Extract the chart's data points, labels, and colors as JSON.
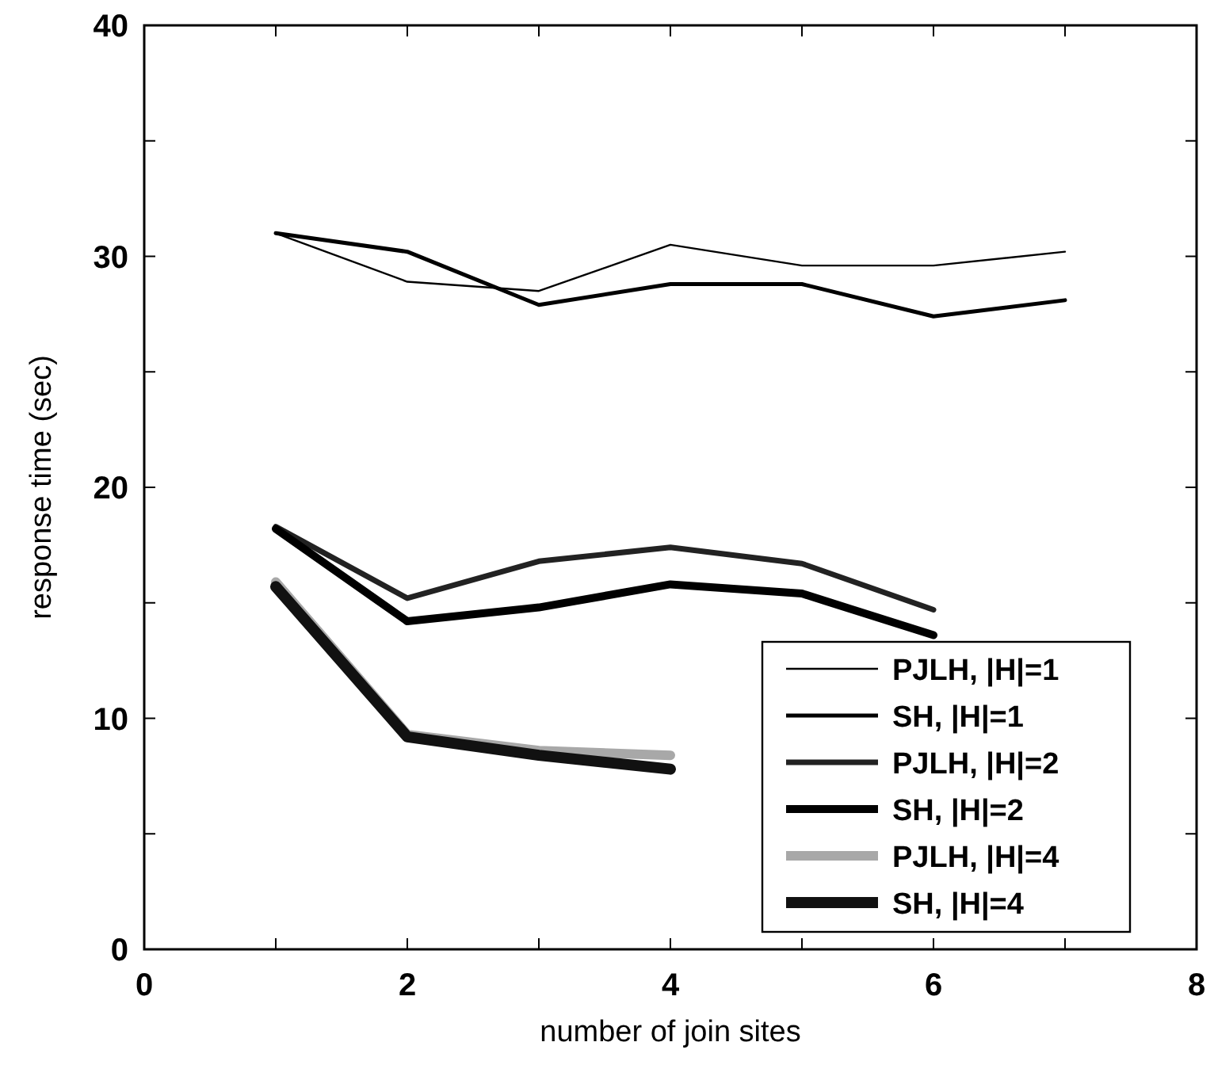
{
  "chart_data": {
    "type": "line",
    "xlabel": "number of join sites",
    "ylabel": "response time (sec)",
    "xlim": [
      0,
      8
    ],
    "ylim": [
      0,
      40
    ],
    "xticks": [
      0,
      {
        "value": 1,
        "label": null
      },
      2,
      {
        "value": 3,
        "label": null
      },
      4,
      {
        "value": 5,
        "label": null
      },
      6,
      {
        "value": 7,
        "label": null
      },
      8
    ],
    "yticks": [
      0,
      {
        "value": 5,
        "label": null
      },
      10,
      {
        "value": 15,
        "label": null
      },
      20,
      {
        "value": 25,
        "label": null
      },
      30,
      {
        "value": 35,
        "label": null
      },
      40
    ],
    "grid": false,
    "legend": "bottom right",
    "marker": "none",
    "line_style": "solid",
    "series": [
      {
        "name": "PJLH, |H|=1",
        "color": "#000000",
        "x": [
          1,
          2,
          3,
          4,
          5,
          6,
          7
        ],
        "values": [
          31.0,
          28.9,
          28.5,
          30.5,
          29.6,
          29.6,
          30.2
        ]
      },
      {
        "name": "SH, |H|=1",
        "color": "#000000",
        "x": [
          1,
          2,
          3,
          4,
          5,
          6,
          7
        ],
        "values": [
          31.0,
          30.2,
          27.9,
          28.8,
          28.8,
          27.4,
          28.1
        ]
      },
      {
        "name": "PJLH, |H|=2",
        "color": "#222222",
        "x": [
          1,
          2,
          3,
          4,
          5,
          6
        ],
        "values": [
          18.3,
          15.2,
          16.8,
          17.4,
          16.7,
          14.7
        ]
      },
      {
        "name": "SH, |H|=2",
        "color": "#000000",
        "x": [
          1,
          2,
          3,
          4,
          5,
          6
        ],
        "values": [
          18.2,
          14.2,
          14.8,
          15.8,
          15.4,
          13.6
        ]
      },
      {
        "name": "PJLH, |H|=4",
        "color": "#a8a8a8",
        "x": [
          1,
          2,
          3,
          4
        ],
        "values": [
          15.9,
          9.3,
          8.6,
          8.4
        ]
      },
      {
        "name": "SH, |H|=4",
        "color": "#111111",
        "x": [
          1,
          2,
          3,
          4
        ],
        "values": [
          15.7,
          9.2,
          8.4,
          7.8
        ]
      }
    ]
  }
}
